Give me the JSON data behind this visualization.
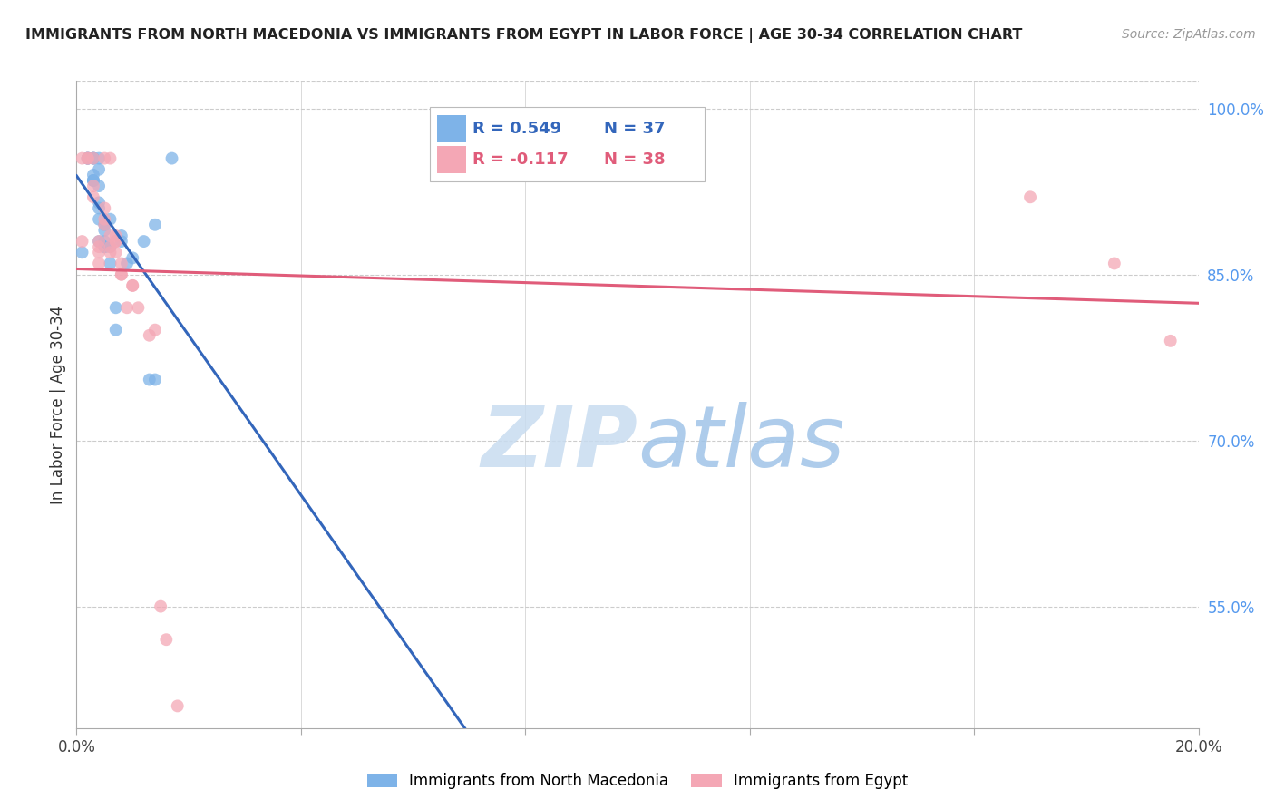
{
  "title": "IMMIGRANTS FROM NORTH MACEDONIA VS IMMIGRANTS FROM EGYPT IN LABOR FORCE | AGE 30-34 CORRELATION CHART",
  "source": "Source: ZipAtlas.com",
  "ylabel": "In Labor Force | Age 30-34",
  "yticks": [
    0.55,
    0.7,
    0.85,
    1.0
  ],
  "ytick_labels": [
    "55.0%",
    "70.0%",
    "85.0%",
    "100.0%"
  ],
  "xmin": 0.0,
  "xmax": 0.2,
  "ymin": 0.44,
  "ymax": 1.025,
  "blue_R": 0.549,
  "blue_N": 37,
  "pink_R": -0.117,
  "pink_N": 38,
  "blue_label": "Immigrants from North Macedonia",
  "pink_label": "Immigrants from Egypt",
  "blue_color": "#7EB3E8",
  "pink_color": "#F4A7B5",
  "blue_line_color": "#3366BB",
  "pink_line_color": "#E05C7A",
  "blue_scatter_x": [
    0.001,
    0.002,
    0.002,
    0.002,
    0.003,
    0.003,
    0.003,
    0.003,
    0.003,
    0.003,
    0.003,
    0.004,
    0.004,
    0.004,
    0.004,
    0.004,
    0.004,
    0.004,
    0.005,
    0.005,
    0.005,
    0.005,
    0.005,
    0.006,
    0.006,
    0.006,
    0.007,
    0.007,
    0.008,
    0.008,
    0.009,
    0.01,
    0.012,
    0.013,
    0.014,
    0.014,
    0.017
  ],
  "blue_scatter_y": [
    0.87,
    0.955,
    0.955,
    0.955,
    0.935,
    0.935,
    0.935,
    0.94,
    0.955,
    0.955,
    0.955,
    0.88,
    0.9,
    0.91,
    0.915,
    0.93,
    0.945,
    0.955,
    0.875,
    0.875,
    0.88,
    0.89,
    0.895,
    0.86,
    0.875,
    0.9,
    0.8,
    0.82,
    0.88,
    0.885,
    0.86,
    0.865,
    0.88,
    0.755,
    0.755,
    0.895,
    0.955
  ],
  "pink_scatter_x": [
    0.001,
    0.001,
    0.002,
    0.002,
    0.003,
    0.003,
    0.003,
    0.004,
    0.004,
    0.004,
    0.004,
    0.005,
    0.005,
    0.005,
    0.005,
    0.006,
    0.006,
    0.006,
    0.006,
    0.007,
    0.007,
    0.007,
    0.007,
    0.008,
    0.008,
    0.008,
    0.009,
    0.01,
    0.01,
    0.011,
    0.013,
    0.014,
    0.015,
    0.016,
    0.018,
    0.17,
    0.185,
    0.195
  ],
  "pink_scatter_y": [
    0.955,
    0.88,
    0.955,
    0.955,
    0.955,
    0.93,
    0.92,
    0.88,
    0.875,
    0.87,
    0.86,
    0.895,
    0.9,
    0.91,
    0.955,
    0.885,
    0.875,
    0.87,
    0.955,
    0.88,
    0.87,
    0.885,
    0.88,
    0.86,
    0.85,
    0.85,
    0.82,
    0.84,
    0.84,
    0.82,
    0.795,
    0.8,
    0.55,
    0.52,
    0.46,
    0.92,
    0.86,
    0.79
  ],
  "watermark_zip": "ZIP",
  "watermark_atlas": "atlas",
  "background_color": "#FFFFFF",
  "grid_color": "#CCCCCC"
}
